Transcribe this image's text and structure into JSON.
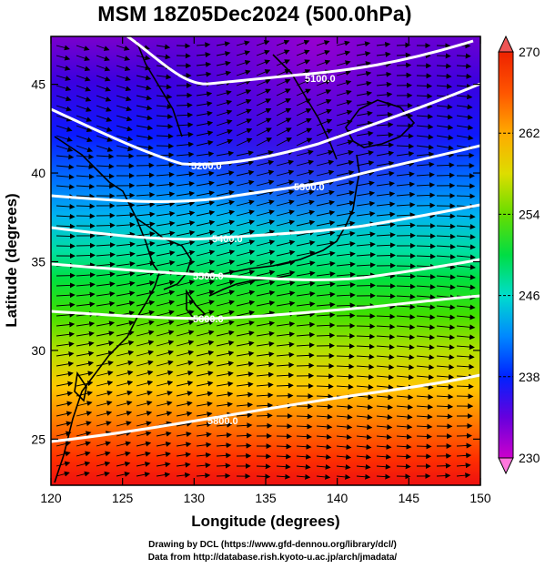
{
  "title": "MSM 18Z05Dec2024 (500.0hPa)",
  "map": {
    "lon_range": [
      120,
      150
    ],
    "lat_range": [
      22.4,
      47.7
    ],
    "x_ticks": [
      "120",
      "125",
      "130",
      "135",
      "140",
      "145",
      "150"
    ],
    "x_tick_values": [
      120,
      125,
      130,
      135,
      140,
      145,
      150
    ],
    "y_ticks": [
      "25",
      "30",
      "35",
      "40",
      "45"
    ],
    "y_tick_values": [
      25,
      30,
      35,
      40,
      45
    ],
    "xlabel": "Longitude (degrees)",
    "ylabel": "Latitude  (degrees)",
    "shading": "temperature (K)",
    "wind_vectors": "arrows, predominantly westerly"
  },
  "contours": [
    {
      "label": "5100.0"
    },
    {
      "label": "5200.0"
    },
    {
      "label": "5300.0"
    },
    {
      "label": "5400.0"
    },
    {
      "label": "5500.0"
    },
    {
      "label": "5600.0"
    },
    {
      "label": "5800.0"
    }
  ],
  "colorbar": {
    "ticks": [
      "270",
      "262",
      "254",
      "246",
      "238",
      "230"
    ],
    "tick_values": [
      270,
      262,
      254,
      246,
      238,
      230
    ],
    "range": [
      230,
      270
    ],
    "colors": [
      "#cc00cc",
      "#8800cc",
      "#3300dd",
      "#0033ff",
      "#0088ff",
      "#00ccdd",
      "#00dd88",
      "#00dd33",
      "#66dd00",
      "#ccdd00",
      "#ffcc00",
      "#ff8800",
      "#ff4400",
      "#ee2200"
    ]
  },
  "credits": {
    "line1": "Drawing by DCL (https://www.gfd-dennou.org/library/dcl/)",
    "line2": "Data from http://database.rish.kyoto-u.ac.jp/arch/jmadata/"
  }
}
